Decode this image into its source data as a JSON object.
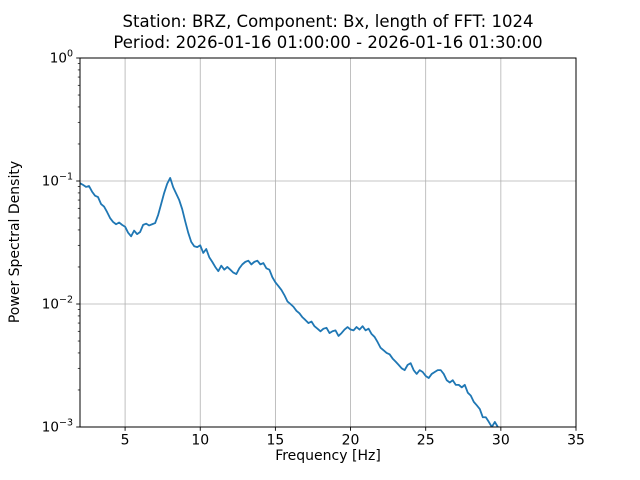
{
  "figure": {
    "title_line1": "Station: BRZ, Component: Bx, length of FFT: 1024",
    "title_line2": "Period: 2026-01-16 01:00:00 - 2026-01-16 01:30:00",
    "xlabel": "Frequency [Hz]",
    "ylabel": "Power Spectral Density"
  },
  "colors": {
    "line": "#1f77b4",
    "grid": "#b0b0b0",
    "spine": "#000000",
    "background": "#ffffff",
    "text": "#000000"
  },
  "chart_data": {
    "type": "line",
    "title": "Station: BRZ, Component: Bx, length of FFT: 1024 | Period: 2026-01-16 01:00:00 - 2026-01-16 01:30:00",
    "xlabel": "Frequency [Hz]",
    "ylabel": "Power Spectral Density",
    "x_scale": "linear",
    "y_scale": "log",
    "xlim": [
      2,
      35
    ],
    "ylim": [
      0.001,
      1.0
    ],
    "x_ticks": [
      5,
      10,
      15,
      20,
      25,
      30,
      35
    ],
    "y_tick_exponents": [
      0,
      -1,
      -2,
      -3
    ],
    "grid": true,
    "legend_visible": false,
    "series": [
      {
        "name": "PSD",
        "color": "#1f77b4",
        "x": [
          2.0,
          2.2,
          2.4,
          2.6,
          2.8,
          3.0,
          3.2,
          3.4,
          3.6,
          3.8,
          4.0,
          4.2,
          4.4,
          4.6,
          4.8,
          5.0,
          5.2,
          5.4,
          5.6,
          5.8,
          6.0,
          6.2,
          6.4,
          6.6,
          6.8,
          7.0,
          7.2,
          7.4,
          7.6,
          7.8,
          8.0,
          8.2,
          8.4,
          8.6,
          8.8,
          9.0,
          9.2,
          9.4,
          9.6,
          9.8,
          10.0,
          10.2,
          10.4,
          10.6,
          10.8,
          11.0,
          11.2,
          11.4,
          11.6,
          11.8,
          12.0,
          12.2,
          12.4,
          12.6,
          12.8,
          13.0,
          13.2,
          13.4,
          13.6,
          13.8,
          14.0,
          14.2,
          14.4,
          14.6,
          14.8,
          15.0,
          15.2,
          15.4,
          15.6,
          15.8,
          16.0,
          16.2,
          16.4,
          16.6,
          16.8,
          17.0,
          17.2,
          17.4,
          17.6,
          17.8,
          18.0,
          18.2,
          18.4,
          18.6,
          18.8,
          19.0,
          19.2,
          19.4,
          19.6,
          19.8,
          20.0,
          20.2,
          20.4,
          20.6,
          20.8,
          21.0,
          21.2,
          21.4,
          21.6,
          21.8,
          22.0,
          22.2,
          22.4,
          22.6,
          22.8,
          23.0,
          23.2,
          23.4,
          23.6,
          23.8,
          24.0,
          24.2,
          24.4,
          24.6,
          24.8,
          25.0,
          25.2,
          25.4,
          25.6,
          25.8,
          26.0,
          26.2,
          26.4,
          26.6,
          26.8,
          27.0,
          27.2,
          27.4,
          27.6,
          27.8,
          28.0,
          28.2,
          28.4,
          28.6,
          28.8,
          29.0,
          29.2,
          29.4,
          29.6,
          29.8
        ],
        "y": [
          0.096,
          0.093,
          0.0895,
          0.091,
          0.082,
          0.076,
          0.074,
          0.065,
          0.062,
          0.056,
          0.05,
          0.0465,
          0.0445,
          0.046,
          0.044,
          0.0425,
          0.038,
          0.0355,
          0.0395,
          0.037,
          0.0385,
          0.044,
          0.045,
          0.0435,
          0.0445,
          0.0455,
          0.053,
          0.065,
          0.08,
          0.095,
          0.106,
          0.089,
          0.079,
          0.07,
          0.059,
          0.047,
          0.038,
          0.032,
          0.0295,
          0.029,
          0.03,
          0.026,
          0.028,
          0.024,
          0.022,
          0.02,
          0.0185,
          0.0205,
          0.019,
          0.02,
          0.019,
          0.018,
          0.0175,
          0.0195,
          0.021,
          0.022,
          0.0225,
          0.021,
          0.022,
          0.0225,
          0.021,
          0.0215,
          0.0195,
          0.019,
          0.0165,
          0.015,
          0.014,
          0.013,
          0.0118,
          0.0105,
          0.01,
          0.0095,
          0.0088,
          0.0084,
          0.0078,
          0.0074,
          0.007,
          0.0072,
          0.0066,
          0.0063,
          0.006,
          0.0063,
          0.0064,
          0.0058,
          0.006,
          0.0061,
          0.0055,
          0.0058,
          0.0062,
          0.0065,
          0.0062,
          0.0061,
          0.0065,
          0.0062,
          0.0066,
          0.0061,
          0.0063,
          0.0057,
          0.0054,
          0.0049,
          0.0044,
          0.0042,
          0.004,
          0.0039,
          0.0036,
          0.0034,
          0.0032,
          0.003,
          0.0029,
          0.0032,
          0.0033,
          0.0029,
          0.0027,
          0.0029,
          0.0028,
          0.0026,
          0.0025,
          0.0027,
          0.0028,
          0.0029,
          0.0029,
          0.0027,
          0.0024,
          0.0023,
          0.0024,
          0.0022,
          0.0022,
          0.0021,
          0.0022,
          0.0019,
          0.0018,
          0.0016,
          0.0015,
          0.0014,
          0.0012,
          0.0012,
          0.0011,
          0.001,
          0.0011,
          0.001
        ]
      }
    ]
  }
}
